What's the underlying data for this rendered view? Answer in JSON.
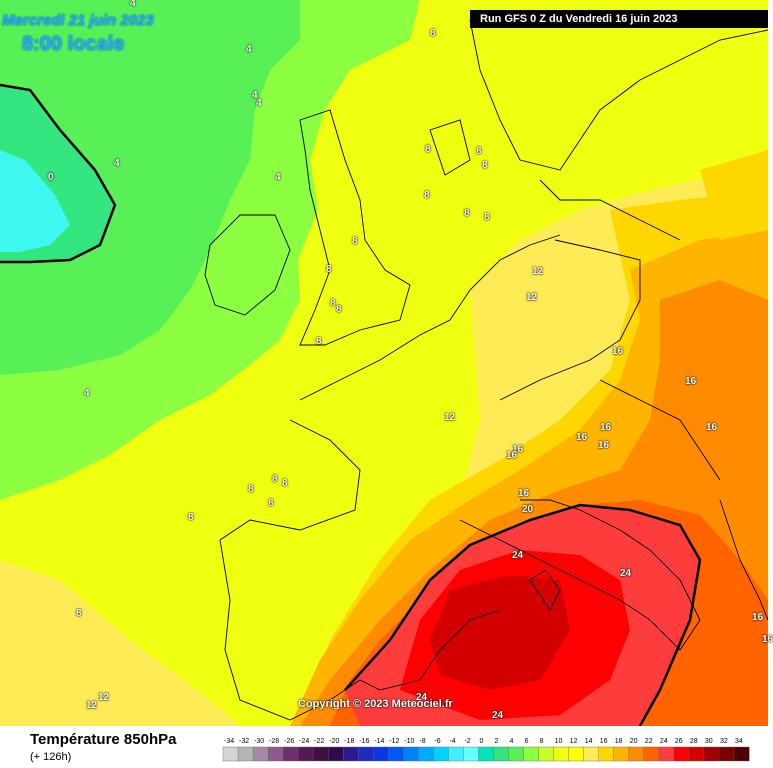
{
  "header": {
    "date_text": "Mercredi 21 juin 2023",
    "time_text": "8:00 locale",
    "run_text": "Run GFS 0 Z du Vendredi 16 juin 2023"
  },
  "footer": {
    "variable_label": "Température 850hPa",
    "lead_label": "(+ 126h)",
    "copyright": "Copyright © 2023 Meteociel.fr"
  },
  "legend": {
    "ticks": [
      "-34",
      "-32",
      "-30",
      "-28",
      "-26",
      "-24",
      "-22",
      "-20",
      "-18",
      "-16",
      "-14",
      "-12",
      "-10",
      "-8",
      "-6",
      "-4",
      "-2",
      "0",
      "2",
      "4",
      "6",
      "8",
      "10",
      "12",
      "14",
      "16",
      "18",
      "20",
      "22",
      "24",
      "26",
      "28",
      "30",
      "32",
      "34"
    ],
    "colors": [
      "#d4d4d4",
      "#b5b5b5",
      "#a58aa5",
      "#8e5b8e",
      "#6e2f6e",
      "#551a55",
      "#3f0f3f",
      "#2e0b4f",
      "#2d1a8f",
      "#1d2bbf",
      "#0c35e6",
      "#0058ff",
      "#0082ff",
      "#00aaff",
      "#00d2ff",
      "#40f0ff",
      "#66ffff",
      "#00e6b4",
      "#33e680",
      "#57f057",
      "#8cff40",
      "#c8ff28",
      "#f0ff10",
      "#ffff00",
      "#ffeb55",
      "#ffd700",
      "#ffb400",
      "#ff8c00",
      "#ff6400",
      "#ff3c3c",
      "#ff0000",
      "#d20000",
      "#a00000",
      "#780000",
      "#500000"
    ]
  },
  "map_labels": [
    {
      "text": "4"
    },
    {
      "text": "4"
    },
    {
      "text": "4"
    },
    {
      "text": "4"
    },
    {
      "text": "4"
    },
    {
      "text": "4"
    },
    {
      "text": "0"
    },
    {
      "text": "4"
    },
    {
      "text": "8"
    },
    {
      "text": "8"
    },
    {
      "text": "8"
    },
    {
      "text": "8"
    },
    {
      "text": "8"
    },
    {
      "text": "8"
    },
    {
      "text": "8"
    },
    {
      "text": "8"
    },
    {
      "text": "8"
    },
    {
      "text": "8"
    },
    {
      "text": "8"
    },
    {
      "text": "8"
    },
    {
      "text": "8"
    },
    {
      "text": "8"
    },
    {
      "text": "8"
    },
    {
      "text": "8"
    },
    {
      "text": "8"
    },
    {
      "text": "8"
    },
    {
      "text": "12"
    },
    {
      "text": "12"
    },
    {
      "text": "12"
    },
    {
      "text": "12"
    },
    {
      "text": "12"
    },
    {
      "text": "16"
    },
    {
      "text": "16"
    },
    {
      "text": "16"
    },
    {
      "text": "16"
    },
    {
      "text": "16"
    },
    {
      "text": "16"
    },
    {
      "text": "16"
    },
    {
      "text": "16"
    },
    {
      "text": "16"
    },
    {
      "text": "16"
    },
    {
      "text": "16"
    },
    {
      "text": "20"
    },
    {
      "text": "24"
    },
    {
      "text": "24"
    },
    {
      "text": "24"
    },
    {
      "text": "24"
    }
  ],
  "colors": {
    "band_0": "#3ef7ee",
    "band_2": "#33e680",
    "band_4": "#57f057",
    "band_6": "#8cff40",
    "band_8": "#f0ff10",
    "band_10": "#ffff00",
    "band_12": "#ffeb55",
    "band_14": "#ffd700",
    "band_16": "#ffb400",
    "band_18": "#ff8c00",
    "band_20": "#ff6400",
    "band_22": "#ff3c3c",
    "band_24": "#ff0000",
    "band_26": "#d20000"
  }
}
